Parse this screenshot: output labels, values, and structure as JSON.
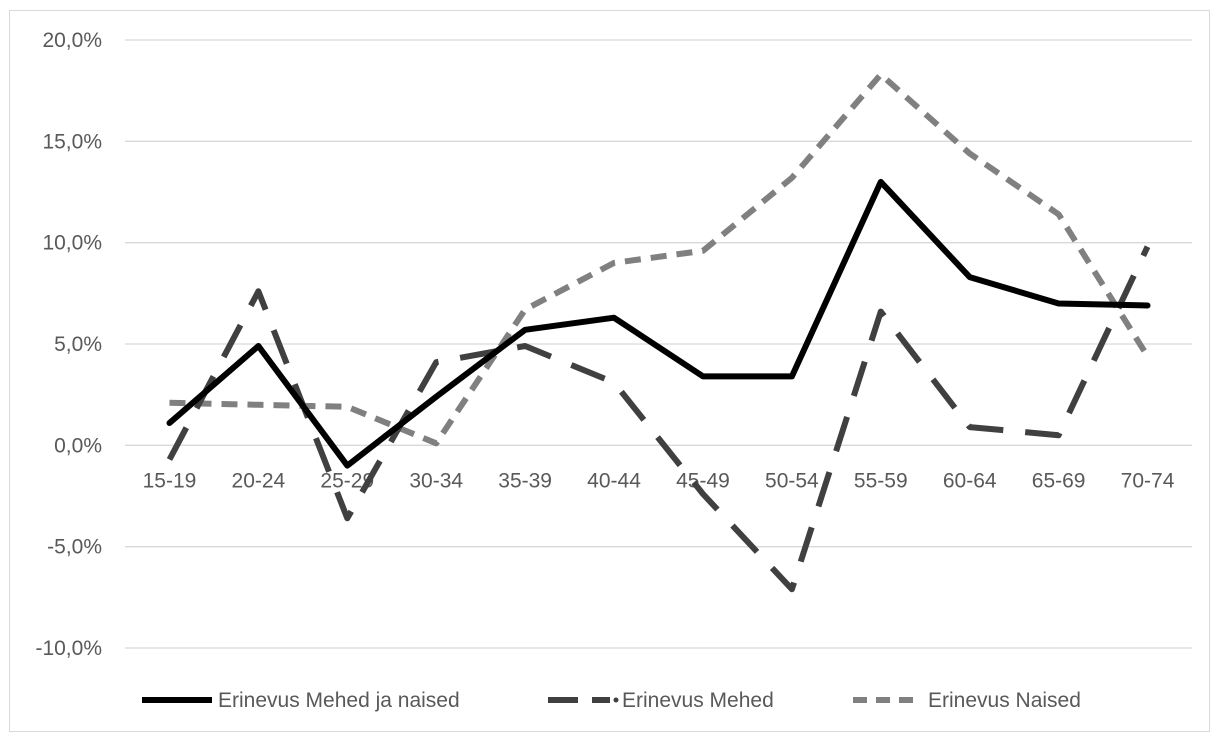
{
  "chart_data": {
    "type": "line",
    "title": "",
    "xlabel": "",
    "ylabel": "",
    "categories": [
      "15-19",
      "20-24",
      "25-29",
      "30-34",
      "35-39",
      "40-44",
      "45-49",
      "50-54",
      "55-59",
      "60-64",
      "65-69",
      "70-74"
    ],
    "ylim": [
      -10,
      20
    ],
    "yticks": [
      20,
      15,
      10,
      5,
      0,
      -5,
      -10
    ],
    "ytick_labels": [
      "20,0%",
      "15,0%",
      "10,0%",
      "5,0%",
      "0,0%",
      "-5,0%",
      "-10,0%"
    ],
    "grid": true,
    "legend_position": "bottom",
    "series": [
      {
        "name": "Erinevus Mehed ja naised",
        "style": "solid",
        "color": "#000000",
        "values": [
          1.1,
          4.9,
          -1.0,
          2.4,
          5.7,
          6.3,
          3.4,
          3.4,
          13.0,
          8.3,
          7.0,
          6.9
        ]
      },
      {
        "name": "Erinevus Mehed",
        "style": "long-dash",
        "color": "#404040",
        "values": [
          -0.7,
          7.6,
          -3.6,
          4.1,
          4.9,
          3.1,
          -2.4,
          -7.1,
          6.6,
          0.9,
          0.5,
          9.8
        ]
      },
      {
        "name": "Erinevus Naised",
        "style": "short-dash",
        "color": "#808080",
        "values": [
          2.1,
          2.0,
          1.9,
          0.1,
          6.7,
          9.0,
          9.6,
          13.2,
          18.3,
          14.4,
          11.4,
          4.4
        ]
      }
    ]
  }
}
